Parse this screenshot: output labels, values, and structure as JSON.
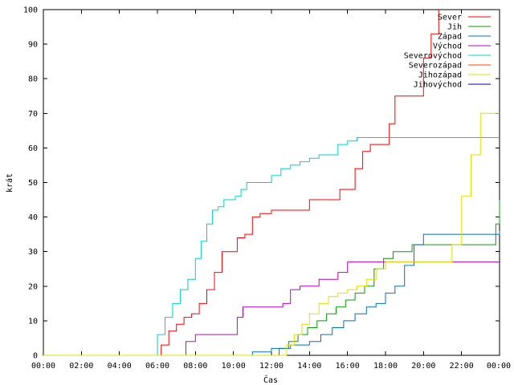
{
  "chart_data": {
    "type": "line",
    "xlabel": "Čas",
    "ylabel": "krát",
    "xlim": [
      0,
      24
    ],
    "ylim": [
      0,
      100
    ],
    "x_ticks": [
      {
        "value": 0,
        "label": "00:00"
      },
      {
        "value": 2,
        "label": "02:00"
      },
      {
        "value": 4,
        "label": "04:00"
      },
      {
        "value": 6,
        "label": "06:00"
      },
      {
        "value": 8,
        "label": "08:00"
      },
      {
        "value": 10,
        "label": "10:00"
      },
      {
        "value": 12,
        "label": "12:00"
      },
      {
        "value": 14,
        "label": "14:00"
      },
      {
        "value": 16,
        "label": "16:00"
      },
      {
        "value": 18,
        "label": "18:00"
      },
      {
        "value": 20,
        "label": "20:00"
      },
      {
        "value": 22,
        "label": "22:00"
      },
      {
        "value": 24,
        "label": "00:00"
      }
    ],
    "y_ticks": [
      0,
      10,
      20,
      30,
      40,
      50,
      60,
      70,
      80,
      90,
      100
    ],
    "grid": false,
    "legend_position": "top-right",
    "series": [
      {
        "name": "Sever",
        "color": "#ff0000",
        "x": [
          0,
          5.9,
          6.2,
          6.6,
          7.0,
          7.4,
          7.8,
          8.2,
          8.6,
          9.0,
          9.4,
          9.8,
          10.2,
          10.6,
          11.0,
          11.4,
          12.0,
          13.0,
          14.0,
          15.0,
          15.6,
          16.0,
          16.4,
          16.8,
          17.2,
          17.9,
          18.2,
          18.5,
          19.0,
          19.5,
          20.0,
          20.4,
          20.8
        ],
        "y": [
          0,
          0,
          3,
          7,
          9,
          11,
          12,
          15,
          19,
          24,
          30,
          30,
          34,
          35,
          40,
          41,
          42,
          42,
          45,
          45,
          48,
          48,
          54,
          59,
          61,
          61,
          67,
          75,
          75,
          75,
          86,
          93,
          100
        ]
      },
      {
        "name": "Jih",
        "color": "#00a000",
        "x": [
          0,
          11.6,
          12.4,
          12.9,
          13.4,
          13.9,
          14.4,
          14.9,
          15.4,
          15.9,
          16.4,
          16.9,
          17.4,
          17.9,
          18.4,
          18.9,
          19.4,
          20.0,
          21.0,
          22.0,
          23.0,
          23.5,
          23.8,
          24.0
        ],
        "y": [
          0,
          0,
          2,
          4,
          6,
          8,
          10,
          12,
          14,
          16,
          18,
          20,
          25,
          28,
          30,
          30,
          32,
          32,
          32,
          32,
          32,
          32,
          38,
          45
        ]
      },
      {
        "name": "Západ",
        "color": "#0070c0",
        "x": [
          0,
          9.9,
          11.0,
          12.0,
          13.0,
          14.0,
          14.6,
          15.2,
          15.8,
          16.4,
          17.0,
          17.5,
          18.0,
          18.5,
          19.0,
          19.5,
          20.0,
          21.0,
          22.0,
          23.0,
          23.5,
          24.0
        ],
        "y": [
          0,
          0,
          1,
          2,
          3,
          4,
          6,
          8,
          10,
          12,
          14,
          15,
          18,
          20,
          26,
          32,
          35,
          35,
          35,
          35,
          35,
          36
        ]
      },
      {
        "name": "Východ",
        "color": "#c000c0",
        "x": [
          0,
          7.1,
          7.5,
          8.0,
          9.0,
          9.9,
          10.2,
          10.5,
          11.0,
          12.0,
          12.6,
          13.0,
          13.5,
          14.0,
          14.5,
          15.0,
          15.5,
          16.0,
          16.5,
          17.0,
          18.0,
          19.0,
          20.0,
          21.0,
          22.0,
          23.0,
          24.0
        ],
        "y": [
          0,
          0,
          4,
          6,
          6,
          6,
          11,
          14,
          14,
          14,
          15,
          19,
          20,
          20,
          22,
          22,
          24,
          27,
          27,
          27,
          27,
          27,
          27,
          27,
          27,
          27,
          27
        ]
      },
      {
        "name": "Severovýchod",
        "color": "#00d0d0",
        "x": [
          0,
          5.6,
          6.0,
          6.4,
          6.8,
          7.2,
          7.6,
          8.0,
          8.3,
          8.6,
          8.9,
          9.2,
          9.5,
          9.8,
          10.1,
          10.4,
          10.7,
          11.2,
          12.0,
          12.5,
          13.0,
          13.5,
          14.0,
          14.5,
          15.0,
          15.5,
          16.0,
          16.5,
          17.0,
          18.0,
          19.0,
          20.0,
          21.0,
          22.0,
          23.0,
          24.0
        ],
        "y": [
          0,
          0,
          6,
          11,
          15,
          19,
          22,
          28,
          33,
          38,
          42,
          43,
          45,
          45,
          46,
          48,
          50,
          50,
          52,
          54,
          55,
          56,
          57,
          58,
          58,
          61,
          62,
          63,
          63,
          63,
          63,
          63,
          63,
          63,
          63,
          63
        ]
      },
      {
        "name": "Severozápad",
        "color": "#ff4000",
        "x": [],
        "y": []
      },
      {
        "name": "Jihozápad",
        "color": "#e0e000",
        "x": [
          0,
          12.3,
          12.8,
          13.2,
          13.6,
          14.0,
          14.5,
          15.0,
          15.5,
          16.0,
          16.5,
          17.0,
          17.5,
          18.0,
          19.0,
          20.0,
          21.0,
          21.5,
          22.0,
          22.5,
          23.0,
          23.5,
          24.0
        ],
        "y": [
          0,
          0,
          3,
          6,
          9,
          12,
          15,
          17,
          18,
          19,
          20,
          22,
          25,
          27,
          27,
          27,
          27,
          32,
          46,
          58,
          70,
          70,
          70
        ]
      },
      {
        "name": "Jihovýchod",
        "color": "#0000c0",
        "x": [],
        "y": []
      }
    ]
  }
}
